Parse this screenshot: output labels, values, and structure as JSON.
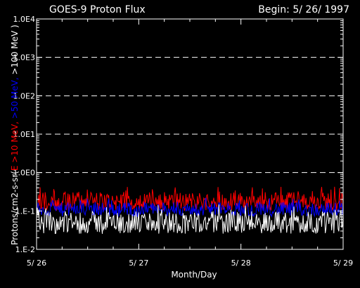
{
  "chart_data": {
    "type": "line",
    "title": "GOES-9 Proton Flux",
    "subtitle": "Begin: 5/ 26/ 1997",
    "xlabel": "Month/Day",
    "ylabel": {
      "prefix": "Protons/cm2-s-sr(",
      "parts": [
        {
          "text": "E >10 MeV, ",
          "color": "#ff0000"
        },
        {
          "text": ">50 MeV, ",
          "color": "#0000ff"
        },
        {
          "text": ">100 MeV )",
          "color": "#ffffff"
        }
      ]
    },
    "yscale": "log",
    "ylim": [
      0.01,
      10000
    ],
    "xlim": [
      0,
      3
    ],
    "x_ticks": [
      {
        "value": 0,
        "label": "5/ 26"
      },
      {
        "value": 1,
        "label": "5/ 27"
      },
      {
        "value": 2,
        "label": "5/ 28"
      },
      {
        "value": 3,
        "label": "5/ 29"
      }
    ],
    "y_ticks": [
      {
        "value": 10000,
        "label": "1.0E4"
      },
      {
        "value": 1000,
        "label": "1.0E3"
      },
      {
        "value": 100,
        "label": "1.0E2"
      },
      {
        "value": 10,
        "label": "1.0E1"
      },
      {
        "value": 1,
        "label": "1.0E0"
      },
      {
        "value": 0.1,
        "label": "1.E-1"
      },
      {
        "value": 0.01,
        "label": "1.E-2"
      }
    ],
    "grid": {
      "style": "dashed",
      "levels": [
        1000,
        100,
        10,
        1
      ]
    },
    "series": [
      {
        "label": ">10 MeV",
        "color": "#ff0000",
        "typical": 0.18,
        "range": [
          0.1,
          0.45
        ]
      },
      {
        "label": ">50 MeV",
        "color": "#0000ff",
        "typical": 0.11,
        "range": [
          0.07,
          0.22
        ]
      },
      {
        "label": ">100 MeV",
        "color": "#ffffff",
        "typical": 0.05,
        "range": [
          0.025,
          0.15
        ]
      }
    ]
  }
}
